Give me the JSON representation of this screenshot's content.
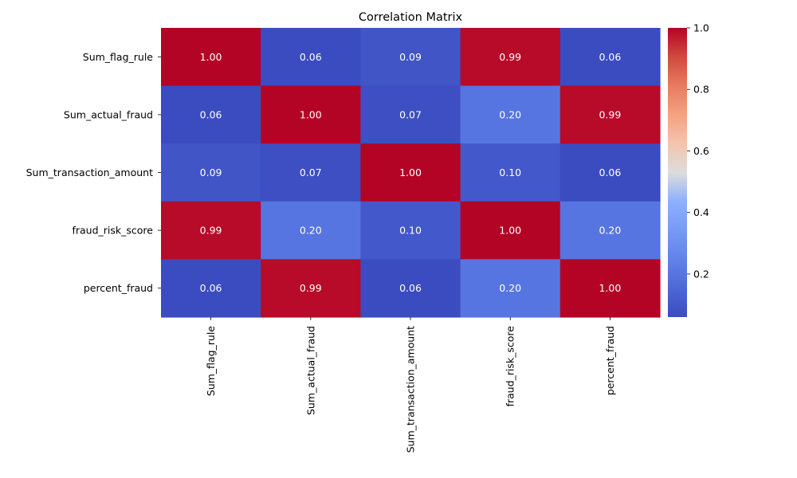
{
  "chart_data": {
    "type": "heatmap",
    "title": "Correlation Matrix",
    "xlabel": "",
    "ylabel": "",
    "x_categories": [
      "Sum_flag_rule",
      "Sum_actual_fraud",
      "Sum_transaction_amount",
      "fraud_risk_score",
      "percent_fraud"
    ],
    "y_categories": [
      "Sum_flag_rule",
      "Sum_actual_fraud",
      "Sum_transaction_amount",
      "fraud_risk_score",
      "percent_fraud"
    ],
    "values": [
      [
        1.0,
        0.06,
        0.09,
        0.99,
        0.06
      ],
      [
        0.06,
        1.0,
        0.07,
        0.2,
        0.99
      ],
      [
        0.09,
        0.07,
        1.0,
        0.1,
        0.06
      ],
      [
        0.99,
        0.2,
        0.1,
        1.0,
        0.2
      ],
      [
        0.06,
        0.99,
        0.06,
        0.2,
        1.0
      ]
    ],
    "annotation_format": "2 decimals",
    "colormap": "coolwarm",
    "colormap_stops": [
      "#3b4cc0",
      "#b40426"
    ],
    "colorbar": {
      "min": 0.06,
      "max": 1.0,
      "ticks": [
        0.2,
        0.4,
        0.6,
        0.8,
        1.0
      ],
      "tick_labels": [
        "0.2",
        "0.4",
        "0.6",
        "0.8",
        "1.0"
      ]
    },
    "grid": false,
    "legend": "colorbar-right"
  }
}
